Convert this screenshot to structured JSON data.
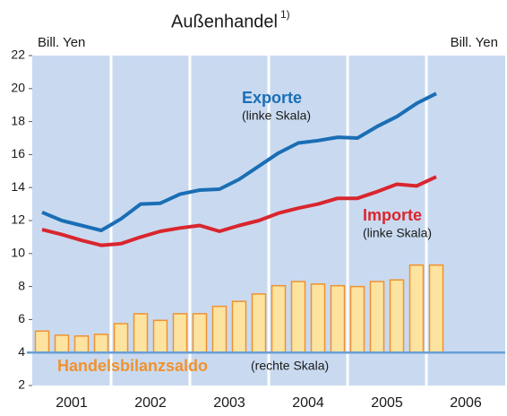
{
  "chart_data": {
    "type": "combo",
    "title": "Außenhandel",
    "title_note": "1)",
    "left_unit": "Bill. Yen",
    "right_unit": "Bill. Yen",
    "years": [
      "2001",
      "2002",
      "2003",
      "2004",
      "2005",
      "2006"
    ],
    "categories": [
      null,
      null,
      null,
      null,
      null,
      null,
      null,
      null,
      null,
      null,
      null,
      null,
      null,
      null,
      null,
      null,
      null,
      null,
      null,
      null,
      null,
      null,
      null,
      null
    ],
    "ylim": [
      2,
      22
    ],
    "yticks": [
      2,
      4,
      6,
      8,
      10,
      12,
      14,
      16,
      18,
      20,
      22
    ],
    "y2lim": [
      -2,
      18
    ],
    "background": "#c9daf0",
    "series": [
      {
        "name": "Handelsbilanzsaldo",
        "scale_note": "(rechte Skala)",
        "type": "bar",
        "axis": "y2",
        "color": "#f0922e",
        "fill": "#fde3a0",
        "values": [
          1.3,
          1.05,
          1.0,
          1.1,
          1.75,
          2.35,
          1.95,
          2.35,
          2.35,
          2.8,
          3.1,
          3.55,
          4.05,
          4.3,
          4.15,
          4.05,
          4.0,
          4.3,
          4.4,
          5.3,
          5.3,
          null,
          null,
          null
        ]
      },
      {
        "name": "Exporte",
        "scale_note": "(linke Skala)",
        "type": "line",
        "color": "#1a6eb5",
        "values": [
          12.5,
          12.0,
          11.7,
          11.4,
          12.1,
          13.0,
          13.05,
          13.6,
          13.85,
          13.9,
          14.5,
          15.3,
          16.1,
          16.7,
          16.85,
          17.05,
          17.0,
          17.7,
          18.3,
          19.1,
          19.7,
          null,
          null,
          null
        ]
      },
      {
        "name": "Importe",
        "scale_note": "(linke Skala)",
        "type": "line",
        "color": "#d9262e",
        "values": [
          11.45,
          11.15,
          10.8,
          10.5,
          10.6,
          11.0,
          11.35,
          11.55,
          11.7,
          11.35,
          11.7,
          12.0,
          12.45,
          12.75,
          13.0,
          13.35,
          13.35,
          13.75,
          14.2,
          14.1,
          14.65,
          null,
          null,
          null
        ]
      }
    ]
  }
}
